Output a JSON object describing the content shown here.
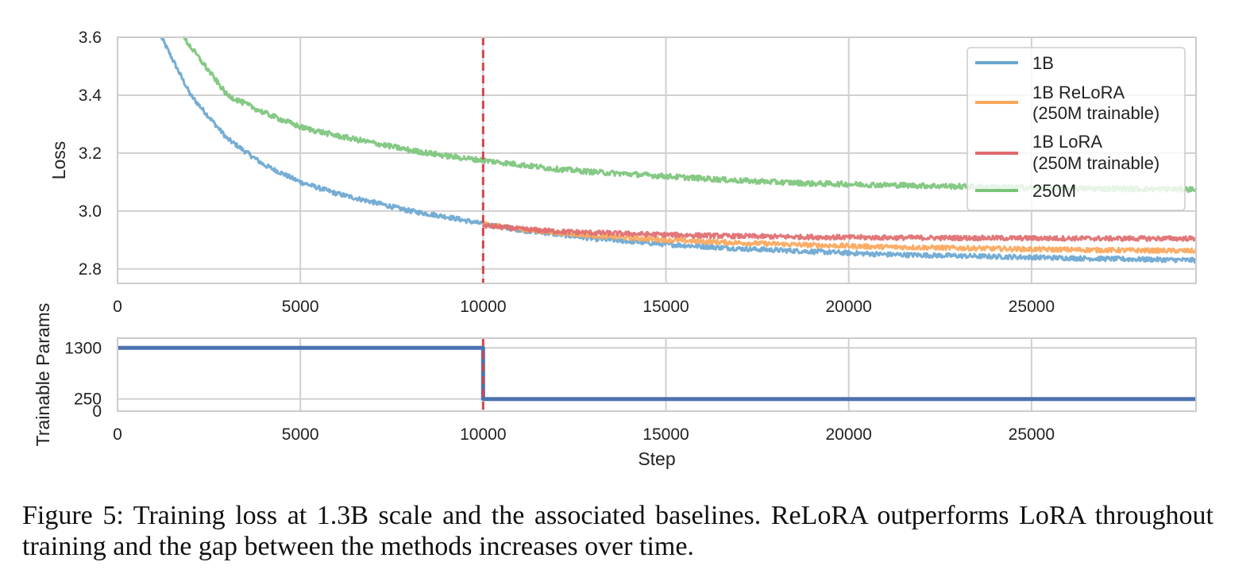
{
  "chart_data": [
    {
      "type": "line",
      "ylabel": "Loss",
      "xlabel": "",
      "xlim": [
        0,
        29500
      ],
      "ylim": [
        2.75,
        3.6
      ],
      "xticks": [
        0,
        5000,
        10000,
        15000,
        20000,
        25000
      ],
      "yticks": [
        2.8,
        3.0,
        3.2,
        3.4,
        3.6
      ],
      "ytick_labels": [
        "2.8",
        "3.0",
        "3.2",
        "3.4",
        "3.6"
      ],
      "grid": true,
      "legend_position": "top-right",
      "annotations": [
        {
          "type": "vertical-dashed-line",
          "x": 10000,
          "color": "#d0464d"
        }
      ],
      "series": [
        {
          "name": "1B",
          "color": "#6aa6d0",
          "x": [
            1200,
            2000,
            3000,
            4000,
            5000,
            6000,
            7000,
            8000,
            9000,
            10000,
            11000,
            12000,
            13000,
            15000,
            17000,
            19000,
            21000,
            23000,
            25000,
            27000,
            29500
          ],
          "values": [
            3.6,
            3.4,
            3.25,
            3.16,
            3.1,
            3.06,
            3.03,
            3.0,
            2.98,
            2.955,
            2.935,
            2.92,
            2.905,
            2.885,
            2.87,
            2.86,
            2.85,
            2.845,
            2.84,
            2.835,
            2.83
          ]
        },
        {
          "name": "1B ReLoRA\n(250M trainable)",
          "color": "#fba65a",
          "x": [
            10000,
            11000,
            12000,
            13000,
            15000,
            17000,
            19000,
            21000,
            23000,
            25000,
            27000,
            29500
          ],
          "values": [
            2.955,
            2.937,
            2.925,
            2.915,
            2.9,
            2.89,
            2.882,
            2.876,
            2.872,
            2.868,
            2.865,
            2.862
          ]
        },
        {
          "name": "1B LoRA\n(250M trainable)",
          "color": "#e06b6f",
          "x": [
            10000,
            11000,
            12000,
            13000,
            15000,
            17000,
            19000,
            21000,
            23000,
            25000,
            27000,
            29500
          ],
          "values": [
            2.95,
            2.938,
            2.93,
            2.925,
            2.918,
            2.913,
            2.91,
            2.908,
            2.907,
            2.906,
            2.905,
            2.905
          ]
        },
        {
          "name": "250M",
          "color": "#7bc47b",
          "x": [
            1800,
            3000,
            4000,
            5000,
            6000,
            7000,
            8000,
            9000,
            10000,
            11000,
            12000,
            13000,
            15000,
            17000,
            19000,
            21000,
            23000,
            25000,
            27000,
            29500
          ],
          "values": [
            3.6,
            3.4,
            3.34,
            3.29,
            3.26,
            3.235,
            3.21,
            3.19,
            3.175,
            3.16,
            3.145,
            3.135,
            3.12,
            3.105,
            3.095,
            3.09,
            3.085,
            3.08,
            3.077,
            3.075
          ]
        }
      ]
    },
    {
      "type": "line",
      "ylabel": "Trainable Params",
      "xlabel": "Step",
      "xlim": [
        0,
        29500
      ],
      "ylim": [
        0,
        1500
      ],
      "xticks": [
        0,
        5000,
        10000,
        15000,
        20000,
        25000
      ],
      "yticks": [
        0,
        250,
        1300
      ],
      "ytick_labels": [
        "0",
        "250",
        "1300"
      ],
      "grid": true,
      "annotations": [
        {
          "type": "vertical-dashed-line",
          "x": 10000,
          "color": "#d0464d"
        }
      ],
      "series": [
        {
          "color": "#4c72b0",
          "x": [
            0,
            10000,
            10000,
            29500
          ],
          "values": [
            1300,
            1300,
            250,
            250
          ]
        }
      ]
    }
  ],
  "caption": "Figure 5: Training loss at 1.3B scale and the associated baselines. ReLoRA outperforms LoRA throughout training and the gap between the methods increases over time."
}
